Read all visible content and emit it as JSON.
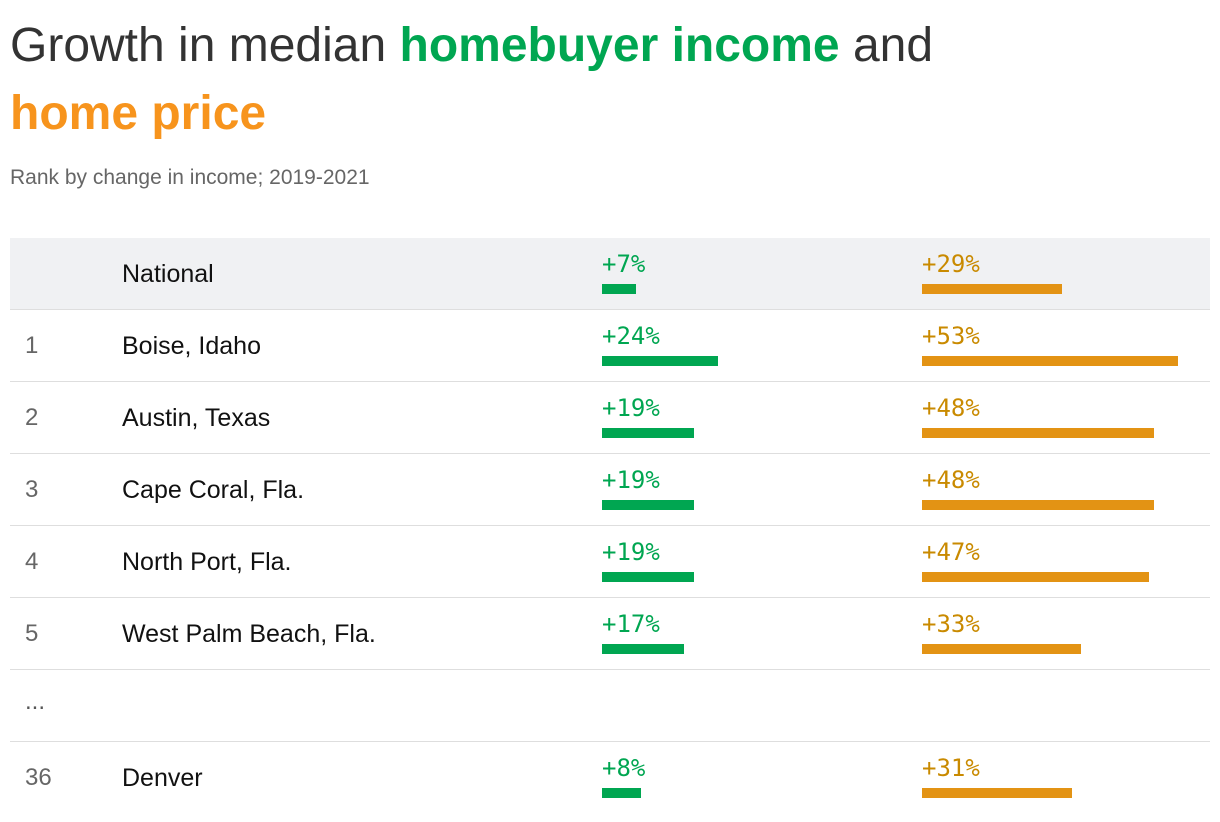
{
  "chart_data": {
    "type": "table",
    "title_parts": [
      "Growth in median ",
      "homebuyer income",
      " and ",
      "home price"
    ],
    "subtitle": "Rank by change in income; 2019-2021",
    "colors": {
      "income": "#00a651",
      "price": "#e39314",
      "price_text": "#c98a00",
      "title_price": "#f7941d"
    },
    "rows": [
      {
        "rank": "",
        "name": "National",
        "income_label": "+7%",
        "income": 7,
        "price_label": "+29%",
        "price": 29
      },
      {
        "rank": "1",
        "name": "Boise, Idaho",
        "income_label": "+24%",
        "income": 24,
        "price_label": "+53%",
        "price": 53
      },
      {
        "rank": "2",
        "name": "Austin, Texas",
        "income_label": "+19%",
        "income": 19,
        "price_label": "+48%",
        "price": 48
      },
      {
        "rank": "3",
        "name": "Cape Coral, Fla.",
        "income_label": "+19%",
        "income": 19,
        "price_label": "+48%",
        "price": 48
      },
      {
        "rank": "4",
        "name": "North Port, Fla.",
        "income_label": "+19%",
        "income": 19,
        "price_label": "+47%",
        "price": 47
      },
      {
        "rank": "5",
        "name": "West Palm Beach, Fla.",
        "income_label": "+17%",
        "income": 17,
        "price_label": "+33%",
        "price": 33
      }
    ],
    "ellipsis": "...",
    "last_row": {
      "rank": "36",
      "name": "Denver",
      "income_label": "+8%",
      "income": 8,
      "price_label": "+31%",
      "price": 31
    }
  }
}
